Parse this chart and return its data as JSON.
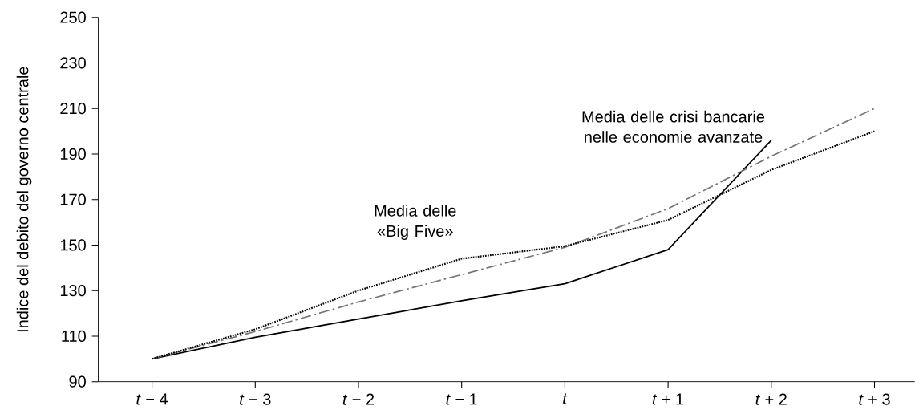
{
  "chart_data": {
    "type": "line",
    "ylabel": "Indice del debito del governo centrale",
    "categories": [
      "*t* − 4",
      "*t* − 3",
      "*t* − 2",
      "*t* − 1",
      "*t*",
      "*t* + 1",
      "*t* + 2",
      "*t* + 3"
    ],
    "series": [
      {
        "color": "#000000",
        "line_style": "solid",
        "values": [
          100,
          109.5,
          117.5,
          125.5,
          133,
          148,
          196,
          null
        ]
      },
      {
        "color": "#777777",
        "line_style": "dashdot",
        "values": [
          100,
          112,
          125,
          137,
          149,
          166,
          189,
          210
        ]
      },
      {
        "color": "#000000",
        "line_style": "dotted",
        "values": [
          100,
          113,
          130,
          144,
          149.5,
          161,
          183,
          200
        ]
      }
    ],
    "ylim": [
      90,
      250
    ],
    "yticks": [
      90,
      110,
      130,
      150,
      170,
      190,
      210,
      230,
      250
    ],
    "grid": false,
    "marker": "none",
    "annotations": [
      "Media delle «Big Five»",
      "Media delle crisi bancarie nelle economie avanzate"
    ]
  }
}
